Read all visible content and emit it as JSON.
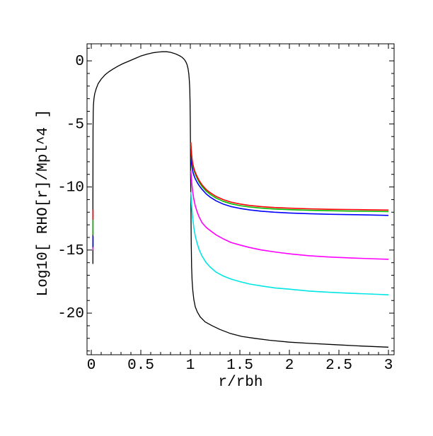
{
  "figure": {
    "background": "#ffffff",
    "frame_color": "#000000"
  },
  "chart_data": {
    "type": "line",
    "title": "",
    "xlabel": "r/rbh",
    "ylabel": "Log10[ RHO[r]/Mpl^4 ]",
    "xlim": [
      -0.043,
      3.057
    ],
    "ylim": [
      -23.3,
      1.35
    ],
    "grid": false,
    "legend": "none",
    "x_major_ticks": [
      0,
      0.5,
      1,
      1.5,
      2,
      2.5,
      3
    ],
    "x_tick_labels": [
      "0",
      "0.5",
      "1",
      "1.5",
      "2",
      "2.5",
      "3"
    ],
    "x_minor_step": 0.1,
    "y_major_ticks": [
      0,
      -5,
      -10,
      -15,
      -20
    ],
    "y_tick_labels": [
      "0",
      "-5",
      "-10",
      "-15",
      "-20"
    ],
    "y_minor_step": 1,
    "series": [
      {
        "name": "black",
        "color": "#000000",
        "width": 1.3,
        "points": [
          [
            0.016,
            -16.1
          ],
          [
            0.016,
            -12
          ],
          [
            0.017,
            -8
          ],
          [
            0.018,
            -5.5
          ],
          [
            0.02,
            -4.0
          ],
          [
            0.022,
            -3.5
          ],
          [
            0.027,
            -3.0
          ],
          [
            0.035,
            -2.6
          ],
          [
            0.05,
            -2.2
          ],
          [
            0.07,
            -1.8
          ],
          [
            0.1,
            -1.45
          ],
          [
            0.14,
            -1.1
          ],
          [
            0.18,
            -0.85
          ],
          [
            0.22,
            -0.65
          ],
          [
            0.27,
            -0.42
          ],
          [
            0.32,
            -0.22
          ],
          [
            0.38,
            -0.02
          ],
          [
            0.44,
            0.18
          ],
          [
            0.5,
            0.38
          ],
          [
            0.56,
            0.52
          ],
          [
            0.62,
            0.64
          ],
          [
            0.68,
            0.7
          ],
          [
            0.72,
            0.72
          ],
          [
            0.76,
            0.72
          ],
          [
            0.8,
            0.68
          ],
          [
            0.84,
            0.58
          ],
          [
            0.87,
            0.49
          ],
          [
            0.9,
            0.37
          ],
          [
            0.92,
            0.26
          ],
          [
            0.94,
            0.1
          ],
          [
            0.955,
            -0.08
          ],
          [
            0.967,
            -0.3
          ],
          [
            0.977,
            -0.62
          ],
          [
            0.985,
            -1.05
          ],
          [
            0.99,
            -1.55
          ],
          [
            0.994,
            -2.2
          ],
          [
            0.997,
            -3.2
          ],
          [
            0.999,
            -4.5
          ],
          [
            1.001,
            -6.5
          ],
          [
            1.003,
            -9.0
          ],
          [
            1.006,
            -12.0
          ],
          [
            1.009,
            -14.5
          ],
          [
            1.013,
            -16.3
          ],
          [
            1.018,
            -17.4
          ],
          [
            1.025,
            -18.2
          ],
          [
            1.035,
            -18.9
          ],
          [
            1.05,
            -19.5
          ],
          [
            1.07,
            -19.9
          ],
          [
            1.1,
            -20.3
          ],
          [
            1.15,
            -20.7
          ],
          [
            1.22,
            -21.0
          ],
          [
            1.3,
            -21.3
          ],
          [
            1.4,
            -21.6
          ],
          [
            1.52,
            -21.85
          ],
          [
            1.65,
            -22.0
          ],
          [
            1.8,
            -22.15
          ],
          [
            2.0,
            -22.3
          ],
          [
            2.2,
            -22.4
          ],
          [
            2.45,
            -22.5
          ],
          [
            2.7,
            -22.6
          ],
          [
            3.0,
            -22.7
          ]
        ]
      },
      {
        "name": "cyan",
        "color": "#00E5E5",
        "width": 1.6,
        "points": [
          [
            1.005,
            -10.4
          ],
          [
            1.01,
            -11.1
          ],
          [
            1.016,
            -11.8
          ],
          [
            1.024,
            -12.5
          ],
          [
            1.035,
            -13.2
          ],
          [
            1.05,
            -13.9
          ],
          [
            1.07,
            -14.5
          ],
          [
            1.09,
            -15.0
          ],
          [
            1.12,
            -15.5
          ],
          [
            1.16,
            -16.0
          ],
          [
            1.2,
            -16.35
          ],
          [
            1.26,
            -16.75
          ],
          [
            1.33,
            -17.05
          ],
          [
            1.41,
            -17.3
          ],
          [
            1.5,
            -17.5
          ],
          [
            1.6,
            -17.7
          ],
          [
            1.72,
            -17.85
          ],
          [
            1.85,
            -18.0
          ],
          [
            2.0,
            -18.1
          ],
          [
            2.2,
            -18.25
          ],
          [
            2.4,
            -18.35
          ],
          [
            2.6,
            -18.42
          ],
          [
            2.8,
            -18.48
          ],
          [
            3.0,
            -18.55
          ]
        ]
      },
      {
        "name": "magenta",
        "color": "#FF00FF",
        "width": 1.6,
        "points": [
          [
            1.005,
            -8.7
          ],
          [
            1.01,
            -9.3
          ],
          [
            1.016,
            -9.85
          ],
          [
            1.024,
            -10.4
          ],
          [
            1.035,
            -10.95
          ],
          [
            1.05,
            -11.5
          ],
          [
            1.07,
            -12.0
          ],
          [
            1.09,
            -12.4
          ],
          [
            1.12,
            -12.85
          ],
          [
            1.16,
            -13.2
          ],
          [
            1.2,
            -13.45
          ],
          [
            1.26,
            -13.8
          ],
          [
            1.33,
            -14.1
          ],
          [
            1.41,
            -14.4
          ],
          [
            1.5,
            -14.6
          ],
          [
            1.6,
            -14.8
          ],
          [
            1.72,
            -15.0
          ],
          [
            1.85,
            -15.15
          ],
          [
            2.0,
            -15.3
          ],
          [
            2.2,
            -15.45
          ],
          [
            2.4,
            -15.55
          ],
          [
            2.6,
            -15.62
          ],
          [
            2.8,
            -15.68
          ],
          [
            3.0,
            -15.73
          ]
        ]
      },
      {
        "name": "blue",
        "color": "#0000FF",
        "width": 1.6,
        "points": [
          [
            1.005,
            -7.6
          ],
          [
            1.01,
            -8.0
          ],
          [
            1.016,
            -8.4
          ],
          [
            1.024,
            -8.75
          ],
          [
            1.035,
            -9.05
          ],
          [
            1.05,
            -9.35
          ],
          [
            1.07,
            -9.65
          ],
          [
            1.09,
            -9.9
          ],
          [
            1.12,
            -10.2
          ],
          [
            1.16,
            -10.55
          ],
          [
            1.2,
            -10.8
          ],
          [
            1.26,
            -11.1
          ],
          [
            1.33,
            -11.35
          ],
          [
            1.41,
            -11.55
          ],
          [
            1.5,
            -11.7
          ],
          [
            1.6,
            -11.82
          ],
          [
            1.72,
            -11.92
          ],
          [
            1.85,
            -12.0
          ],
          [
            2.0,
            -12.06
          ],
          [
            2.2,
            -12.12
          ],
          [
            2.4,
            -12.16
          ],
          [
            2.6,
            -12.19
          ],
          [
            2.8,
            -12.22
          ],
          [
            3.0,
            -12.25
          ]
        ]
      },
      {
        "name": "green",
        "color": "#00BB00",
        "width": 1.6,
        "points": [
          [
            1.005,
            -6.55
          ],
          [
            1.008,
            -7.0
          ],
          [
            1.012,
            -7.45
          ],
          [
            1.018,
            -7.92
          ],
          [
            1.025,
            -8.28
          ],
          [
            1.035,
            -8.63
          ],
          [
            1.05,
            -8.98
          ],
          [
            1.07,
            -9.33
          ],
          [
            1.09,
            -9.63
          ],
          [
            1.12,
            -9.98
          ],
          [
            1.16,
            -10.33
          ],
          [
            1.2,
            -10.58
          ],
          [
            1.26,
            -10.88
          ],
          [
            1.33,
            -11.13
          ],
          [
            1.41,
            -11.33
          ],
          [
            1.5,
            -11.48
          ],
          [
            1.6,
            -11.59
          ],
          [
            1.72,
            -11.68
          ],
          [
            1.85,
            -11.75
          ],
          [
            2.0,
            -11.8
          ],
          [
            2.2,
            -11.85
          ],
          [
            2.4,
            -11.88
          ],
          [
            2.6,
            -11.91
          ],
          [
            2.8,
            -11.93
          ],
          [
            3.0,
            -11.95
          ]
        ]
      },
      {
        "name": "red",
        "color": "#FF0000",
        "width": 1.6,
        "points": [
          [
            1.005,
            -6.45
          ],
          [
            1.008,
            -6.9
          ],
          [
            1.012,
            -7.35
          ],
          [
            1.018,
            -7.8
          ],
          [
            1.025,
            -8.15
          ],
          [
            1.035,
            -8.5
          ],
          [
            1.05,
            -8.85
          ],
          [
            1.07,
            -9.2
          ],
          [
            1.09,
            -9.5
          ],
          [
            1.12,
            -9.85
          ],
          [
            1.16,
            -10.2
          ],
          [
            1.2,
            -10.45
          ],
          [
            1.26,
            -10.75
          ],
          [
            1.33,
            -11.0
          ],
          [
            1.41,
            -11.2
          ],
          [
            1.5,
            -11.35
          ],
          [
            1.6,
            -11.47
          ],
          [
            1.72,
            -11.56
          ],
          [
            1.85,
            -11.63
          ],
          [
            2.0,
            -11.68
          ],
          [
            2.2,
            -11.73
          ],
          [
            2.4,
            -11.77
          ],
          [
            2.6,
            -11.79
          ],
          [
            2.8,
            -11.81
          ],
          [
            3.0,
            -11.83
          ]
        ]
      },
      {
        "name": "red-inner",
        "color": "#FF0000",
        "width": 1.6,
        "points": [
          [
            0.0175,
            -11.8
          ],
          [
            0.0175,
            -12.6
          ]
        ]
      },
      {
        "name": "green-inner",
        "color": "#00BB00",
        "width": 1.6,
        "points": [
          [
            0.0175,
            -12.6
          ],
          [
            0.0175,
            -13.8
          ]
        ]
      },
      {
        "name": "blue-inner",
        "color": "#0000FF",
        "width": 1.6,
        "points": [
          [
            0.0175,
            -13.9
          ],
          [
            0.0175,
            -14.75
          ]
        ]
      },
      {
        "name": "magenta-inner",
        "color": "#FF00FF",
        "width": 1.6,
        "points": [
          [
            0.0175,
            -14.78
          ],
          [
            0.0175,
            -15.0
          ]
        ]
      }
    ]
  }
}
